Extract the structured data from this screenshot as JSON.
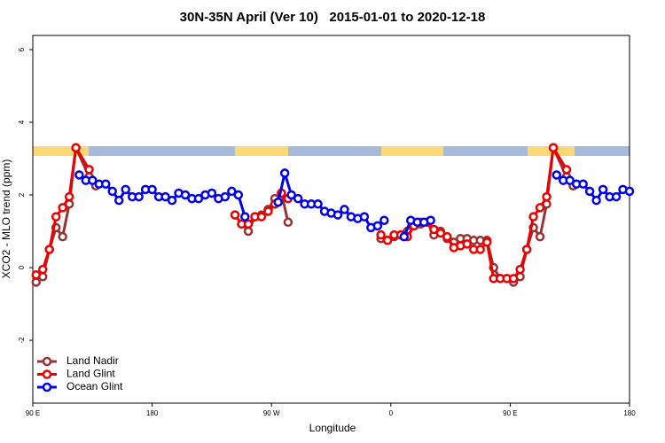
{
  "chart_data": {
    "type": "line",
    "title": "30N-35N April (Ver 10)   2015-01-01 to 2020-12-18",
    "xlabel": "Longitude",
    "ylabel": "XCO2 - MLO trend (ppm)",
    "xlim": [
      90,
      540
    ],
    "xticks": [
      {
        "value": 90,
        "label": "90 E"
      },
      180,
      {
        "value": 270,
        "label": "90 W"
      },
      {
        "value": 360,
        "label": "0"
      },
      {
        "value": 450,
        "label": "90 E"
      },
      {
        "value": 540,
        "label": "180"
      }
    ],
    "ylim": [
      -3.73,
      6.39
    ],
    "yticks": [
      -2,
      0,
      2,
      4,
      6
    ],
    "legend": "bottom-left",
    "series": [
      {
        "name": "Land Nadir",
        "color": "#993333",
        "x": [
          92.5,
          97.5,
          102.5,
          107.5,
          112.5,
          117.5,
          122.5,
          132.5,
          137.5,
          null,
          242.5,
          247.5,
          252.5,
          257.5,
          262.5,
          267.5,
          272.5,
          277.5,
          282.5,
          null,
          352.5,
          357.5,
          362.5,
          367.5,
          372.5,
          377.5,
          382.5,
          387.5,
          392.5,
          397.5,
          402.5,
          407.5,
          412.5,
          417.5,
          422.5,
          427.5,
          432.5,
          437.5,
          442.5,
          447.5,
          452.5,
          457.5,
          462.5,
          467.5,
          472.5,
          477.5,
          482.5,
          492.5,
          497.5
        ],
        "values": [
          -0.4,
          -0.25,
          0.5,
          1.1,
          0.85,
          1.75,
          3.3,
          2.5,
          2.25,
          null,
          1.45,
          1.2,
          1.0,
          1.4,
          1.45,
          1.6,
          1.9,
          2.05,
          1.25,
          null,
          0.8,
          0.75,
          0.85,
          0.9,
          1.0,
          1.2,
          1.2,
          1.25,
          0.9,
          1.0,
          0.8,
          0.7,
          0.8,
          0.8,
          0.75,
          0.75,
          0.75,
          0.0,
          -0.3,
          -0.3,
          -0.4,
          -0.25,
          0.5,
          1.1,
          0.85,
          1.75,
          3.3,
          2.5,
          2.25
        ]
      },
      {
        "name": "Land Glint",
        "color": "#ee0000",
        "x": [
          92.5,
          97.5,
          102.5,
          107.5,
          112.5,
          117.5,
          122.5,
          132.5,
          null,
          242.5,
          247.5,
          252.5,
          257.5,
          262.5,
          267.5,
          272.5,
          277.5,
          282.5,
          null,
          352.5,
          357.5,
          362.5,
          367.5,
          372.5,
          377.5,
          382.5,
          387.5,
          392.5,
          397.5,
          402.5,
          407.5,
          412.5,
          417.5,
          422.5,
          427.5,
          432.5,
          437.5,
          442.5,
          447.5,
          452.5,
          457.5,
          462.5,
          467.5,
          472.5,
          477.5,
          482.5,
          492.5
        ],
        "values": [
          -0.2,
          -0.05,
          0.5,
          1.4,
          1.65,
          1.95,
          3.3,
          2.7,
          null,
          1.45,
          1.2,
          1.2,
          1.4,
          1.4,
          1.55,
          1.75,
          2.05,
          1.9,
          null,
          0.9,
          0.75,
          0.9,
          0.9,
          0.85,
          1.15,
          1.25,
          1.25,
          1.05,
          0.95,
          0.85,
          0.55,
          0.6,
          0.65,
          0.5,
          0.5,
          0.7,
          -0.3,
          -0.3,
          -0.3,
          -0.3,
          -0.05,
          0.5,
          1.4,
          1.65,
          1.95,
          3.3,
          2.7
        ]
      },
      {
        "name": "Ocean Glint",
        "color": "#0000ee",
        "x": [
          125,
          130,
          135,
          140,
          145,
          150,
          155,
          160,
          165,
          170,
          175,
          180,
          185,
          190,
          195,
          200,
          205,
          210,
          215,
          220,
          225,
          230,
          235,
          240,
          245,
          250,
          null,
          275,
          280,
          285,
          290,
          295,
          300,
          305,
          310,
          315,
          320,
          325,
          330,
          335,
          340,
          345,
          350,
          355,
          null,
          370,
          375,
          380,
          385,
          390,
          null,
          485,
          490,
          495,
          500,
          505,
          510,
          515,
          520,
          525,
          530,
          535,
          540
        ],
        "values": [
          2.55,
          2.4,
          2.4,
          2.3,
          2.3,
          2.1,
          1.85,
          2.15,
          1.95,
          1.95,
          2.15,
          2.15,
          1.95,
          1.95,
          1.85,
          2.05,
          2.0,
          1.9,
          1.9,
          2.0,
          2.05,
          1.9,
          1.95,
          2.1,
          2.0,
          1.4,
          null,
          1.8,
          2.6,
          2.0,
          1.9,
          1.75,
          1.75,
          1.75,
          1.55,
          1.5,
          1.45,
          1.6,
          1.4,
          1.35,
          1.4,
          1.1,
          1.15,
          1.3,
          null,
          0.85,
          1.3,
          1.25,
          1.25,
          1.3,
          null,
          2.55,
          2.4,
          2.4,
          2.3,
          2.3,
          2.1,
          1.85,
          2.15,
          1.95,
          1.95,
          2.15,
          2.1
        ]
      }
    ]
  }
}
